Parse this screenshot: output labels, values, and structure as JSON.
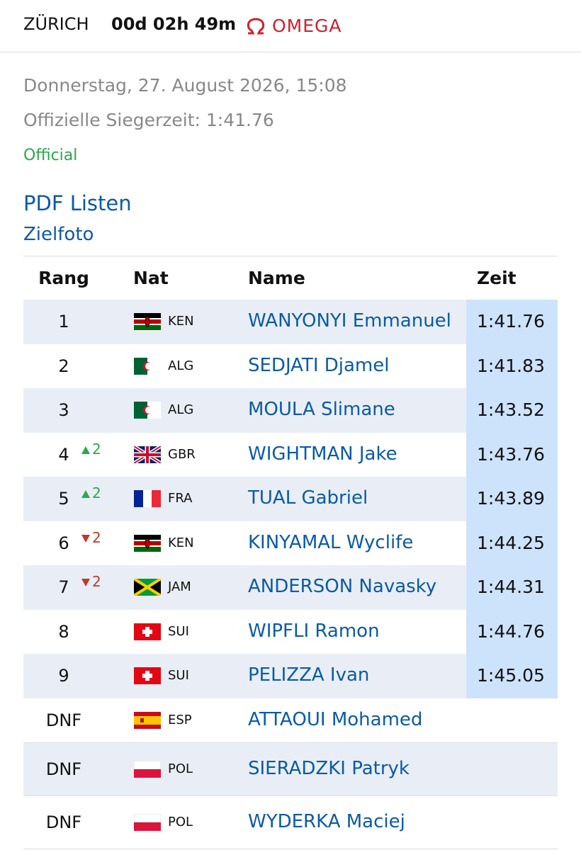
{
  "header": {
    "city": "ZÜRICH",
    "countdown": "00d 02h 49m",
    "brand": "OMEGA"
  },
  "info": {
    "date": "Donnerstag, 27. August 2026, 15:08",
    "winning_time": "Offizielle Siegerzeit: 1:41.76",
    "status": "Official"
  },
  "links": [
    "PDF Listen",
    "Zielfoto"
  ],
  "table": {
    "columns": [
      "Rang",
      "Nat",
      "Name",
      "Zeit"
    ],
    "rows": [
      {
        "rank": "1",
        "nat": "KEN",
        "name": "WANYONYI Emmanuel",
        "time": "1:41.76"
      },
      {
        "rank": "2",
        "nat": "ALG",
        "name": "SEDJATI Djamel",
        "time": "1:41.83"
      },
      {
        "rank": "3",
        "nat": "ALG",
        "name": "MOULA Slimane",
        "time": "1:43.52"
      },
      {
        "rank": "4",
        "change": "2",
        "trend": "up",
        "nat": "GBR",
        "name": "WIGHTMAN Jake",
        "time": "1:43.76"
      },
      {
        "rank": "5",
        "change": "2",
        "trend": "up",
        "nat": "FRA",
        "name": "TUAL Gabriel",
        "time": "1:43.89"
      },
      {
        "rank": "6",
        "change": "2",
        "trend": "down",
        "nat": "KEN",
        "name": "KINYAMAL Wyclife",
        "time": "1:44.25"
      },
      {
        "rank": "7",
        "change": "2",
        "trend": "down",
        "nat": "JAM",
        "name": "ANDERSON Navasky",
        "time": "1:44.31"
      },
      {
        "rank": "8",
        "nat": "SUI",
        "name": "WIPFLI Ramon",
        "time": "1:44.76"
      },
      {
        "rank": "9",
        "nat": "SUI",
        "name": "PELIZZA Ivan",
        "time": "1:45.05"
      },
      {
        "rank": "DNF",
        "nat": "ESP",
        "name": "ATTAOUI Mohamed"
      },
      {
        "rank": "DNF",
        "nat": "POL",
        "name": "SIERADZKI Patryk"
      },
      {
        "rank": "DNF",
        "nat": "POL",
        "name": "WYDERKA Maciej"
      }
    ]
  }
}
